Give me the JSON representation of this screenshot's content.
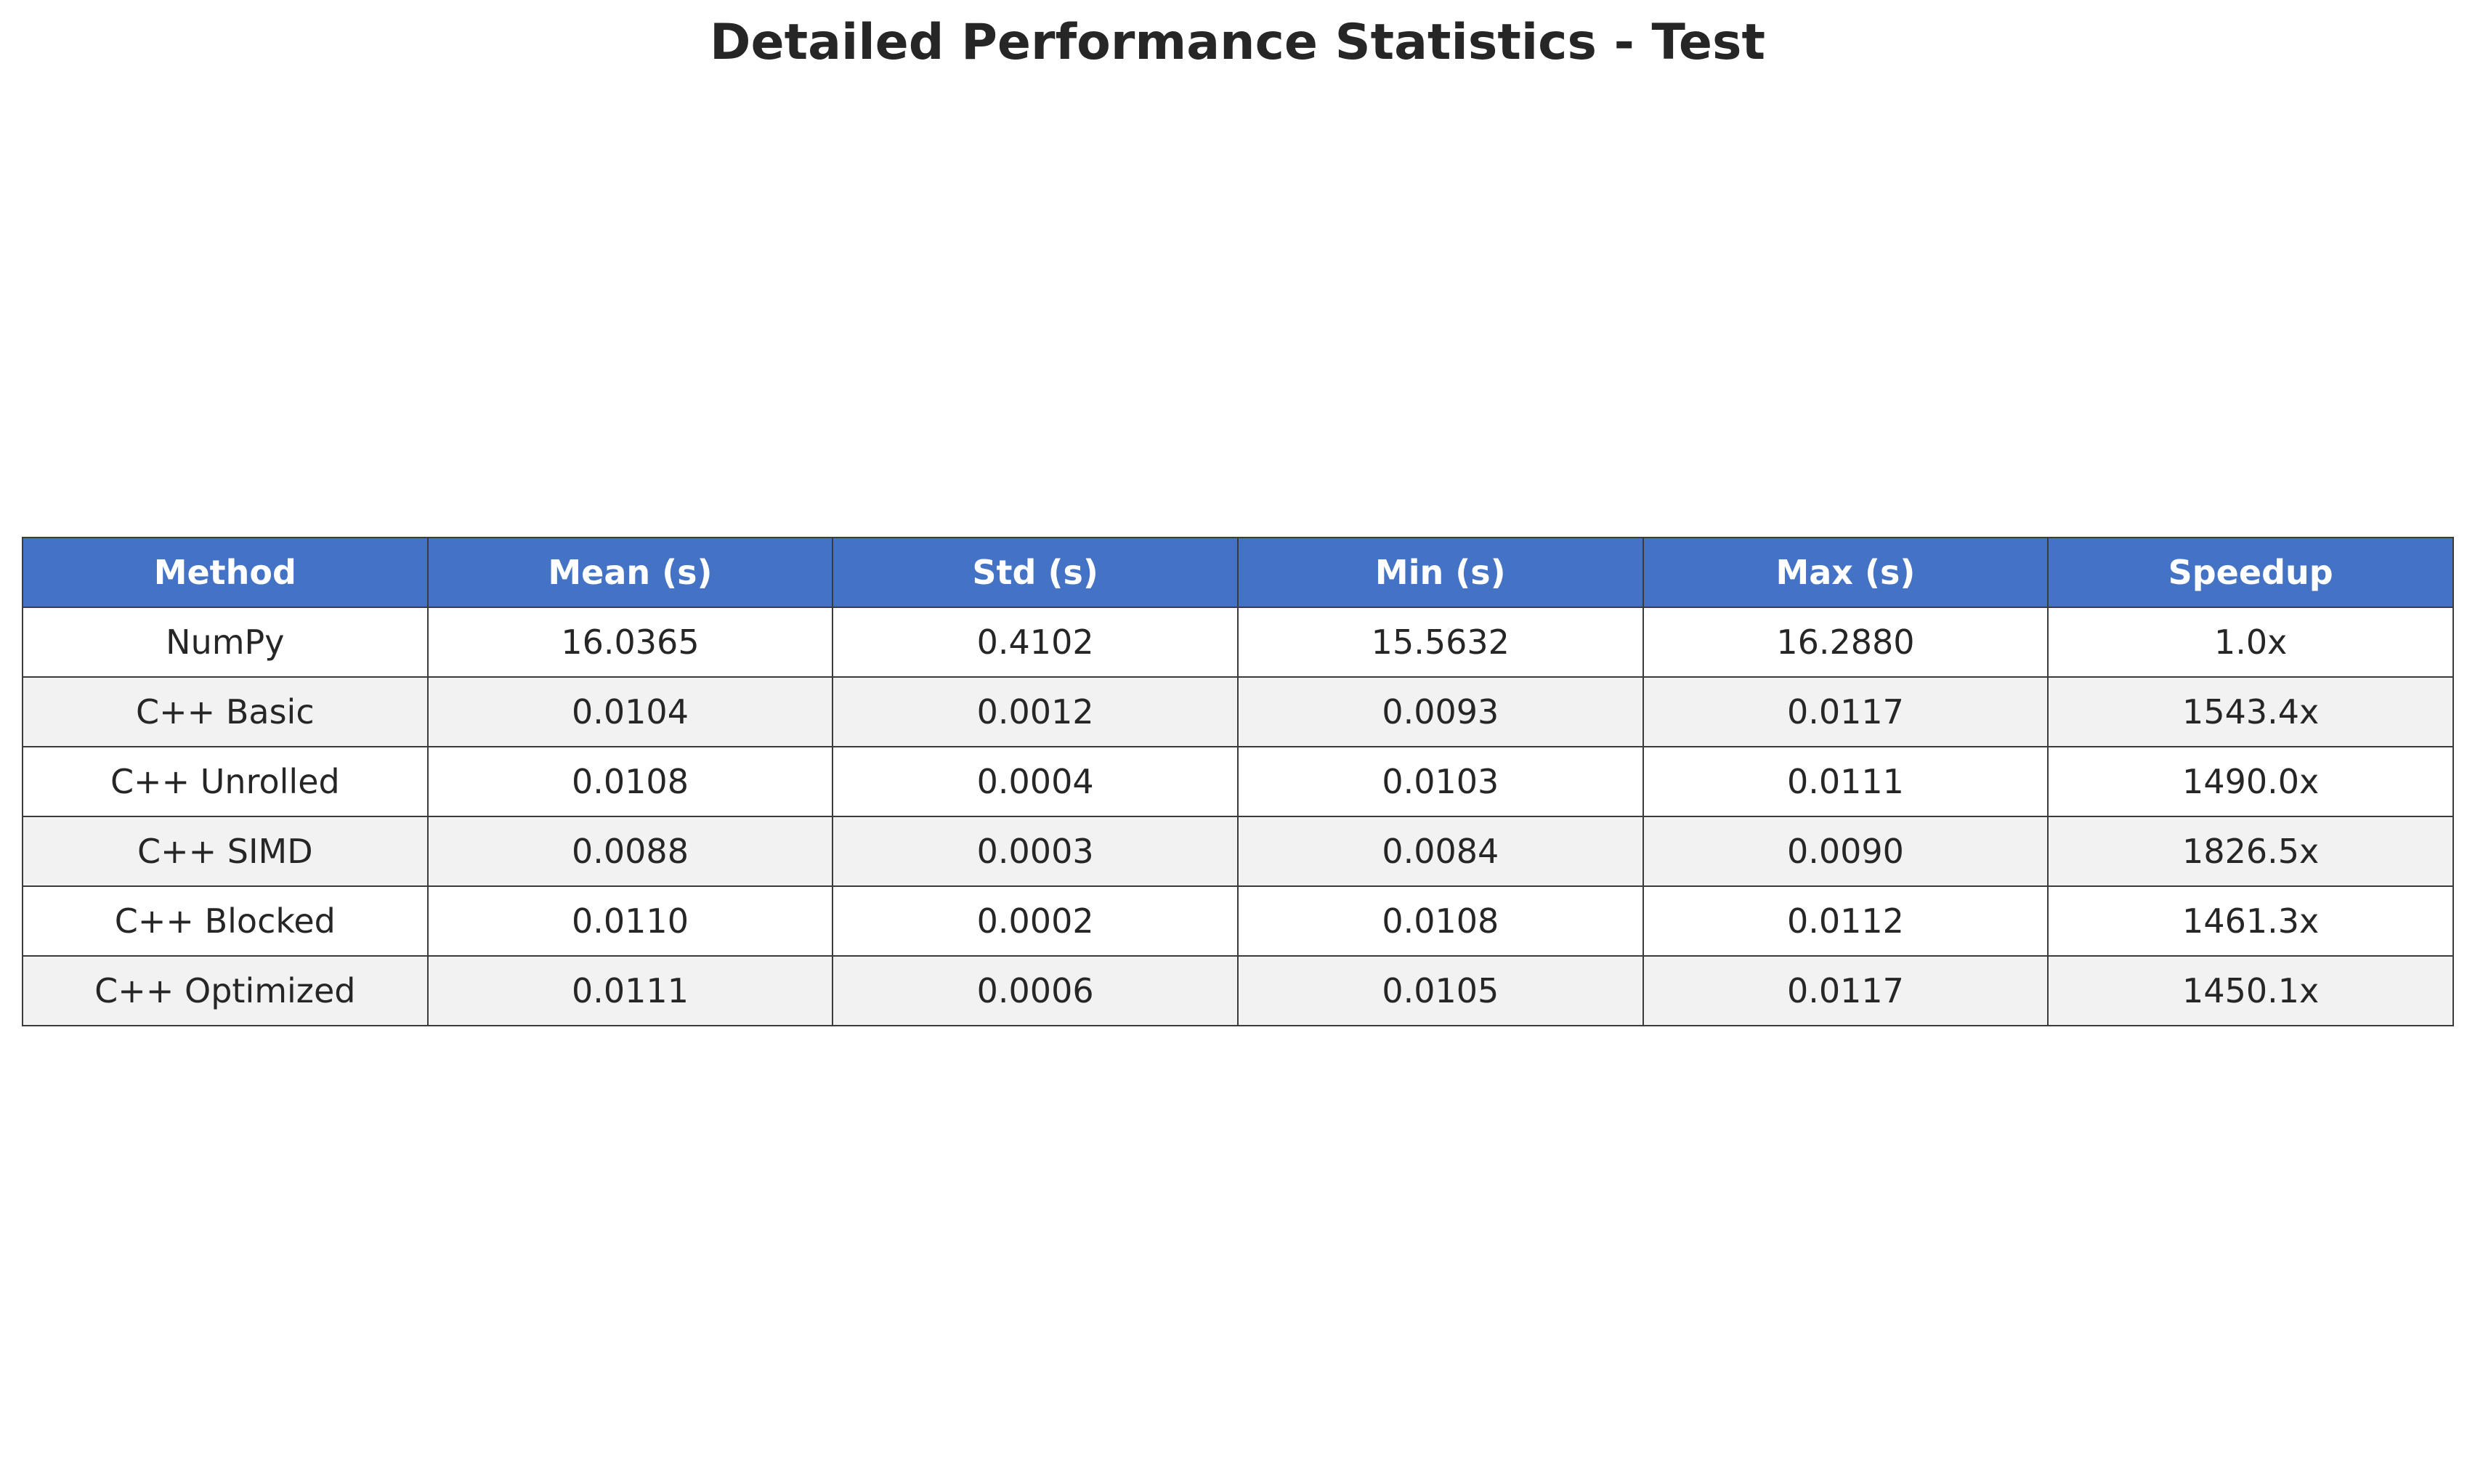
{
  "chart_data": {
    "type": "table",
    "title": "Detailed Performance Statistics - Test",
    "columns": [
      "Method",
      "Mean (s)",
      "Std (s)",
      "Min (s)",
      "Max (s)",
      "Speedup"
    ],
    "rows": [
      [
        "NumPy",
        "16.0365",
        "0.4102",
        "15.5632",
        "16.2880",
        "1.0x"
      ],
      [
        "C++ Basic",
        "0.0104",
        "0.0012",
        "0.0093",
        "0.0117",
        "1543.4x"
      ],
      [
        "C++ Unrolled",
        "0.0108",
        "0.0004",
        "0.0103",
        "0.0111",
        "1490.0x"
      ],
      [
        "C++ SIMD",
        "0.0088",
        "0.0003",
        "0.0084",
        "0.0090",
        "1826.5x"
      ],
      [
        "C++ Blocked",
        "0.0110",
        "0.0002",
        "0.0108",
        "0.0112",
        "1461.3x"
      ],
      [
        "C++ Optimized",
        "0.0111",
        "0.0006",
        "0.0105",
        "0.0117",
        "1450.1x"
      ]
    ],
    "colors": {
      "header_background": "#4472c4",
      "header_text": "#ffffff",
      "row_alt_background": "#f2f2f2",
      "row_background": "#ffffff",
      "border": "#3b3b3b",
      "text": "#262626"
    }
  }
}
